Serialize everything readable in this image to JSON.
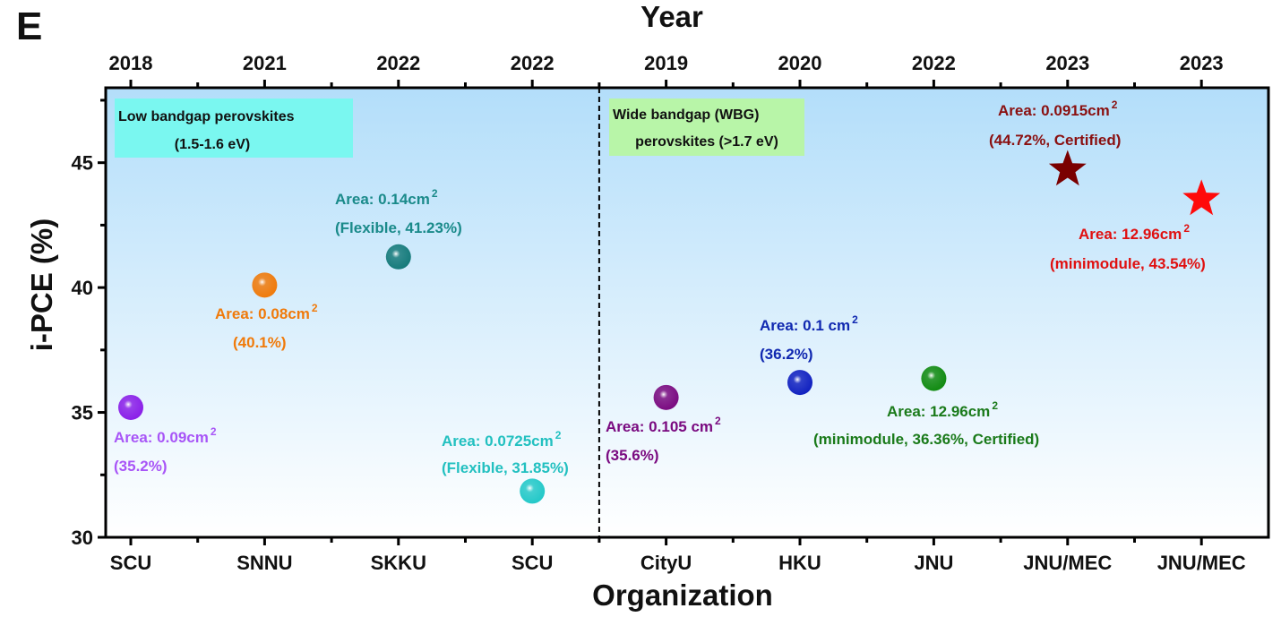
{
  "panel_label": "E",
  "chart_data": {
    "type": "scatter",
    "xlabel": "Organization",
    "x2label": "Year",
    "ylabel": "i-PCE (%)",
    "ylim": [
      30,
      48
    ],
    "yticks": [
      30,
      35,
      40,
      45
    ],
    "grid": false,
    "categories": [
      "SCU",
      "SNNU",
      "SKKU",
      "SCU",
      "CityU",
      "HKU",
      "JNU",
      "JNU/MEC",
      "JNU/MEC"
    ],
    "years": [
      "2018",
      "2021",
      "2022",
      "2022",
      "2019",
      "2020",
      "2022",
      "2023",
      "2023"
    ],
    "divider_after_index": 3,
    "regions": [
      {
        "line1": "Low bandgap perovskites",
        "line2": "(1.5-1.6 eV)",
        "color": "#7af7f0"
      },
      {
        "line1": "Wide bandgap (WBG)",
        "line2": "perovskites (>1.7 eV)",
        "color": "#b8f5a8"
      }
    ],
    "background_gradient": [
      "#b3defa",
      "#ffffff"
    ],
    "points": [
      {
        "y": 35.2,
        "marker": "sphere",
        "color": "#8a1ee8",
        "label_color": "#a855f7",
        "area": "Area: 0.09cm",
        "note": "(35.2%)"
      },
      {
        "y": 40.1,
        "marker": "sphere",
        "color": "#f07a0a",
        "label_color": "#f07a0a",
        "area": "Area: 0.08cm",
        "note": "(40.1%)"
      },
      {
        "y": 41.23,
        "marker": "sphere",
        "color": "#157a7a",
        "label_color": "#1a8a8a",
        "area": "Area: 0.14cm",
        "note": "(Flexible, 41.23%)"
      },
      {
        "y": 31.85,
        "marker": "sphere",
        "color": "#22c8c8",
        "label_color": "#22c0c0",
        "area": "Area: 0.0725cm",
        "note": "(Flexible, 31.85%)"
      },
      {
        "y": 35.6,
        "marker": "sphere",
        "color": "#7a0a80",
        "label_color": "#7a0a80",
        "area": "Area: 0.105 cm",
        "note": "(35.6%)"
      },
      {
        "y": 36.2,
        "marker": "sphere",
        "color": "#1020c0",
        "label_color": "#1028b0",
        "area": "Area: 0.1 cm",
        "note": "(36.2%)"
      },
      {
        "y": 36.36,
        "marker": "sphere",
        "color": "#108a10",
        "label_color": "#1a7a1a",
        "area": "Area: 12.96cm",
        "note": "(minimodule, 36.36%, Certified)"
      },
      {
        "y": 44.72,
        "marker": "star",
        "color": "#7a0000",
        "label_color": "#8a1010",
        "area": "Area: 0.0915cm",
        "note": "(44.72%, Certified)"
      },
      {
        "y": 43.54,
        "marker": "star",
        "color": "#ff0a0a",
        "label_color": "#e01010",
        "area": "Area: 12.96cm",
        "note": "(minimodule, 43.54%)"
      }
    ],
    "area_unit_superscript": "2"
  }
}
